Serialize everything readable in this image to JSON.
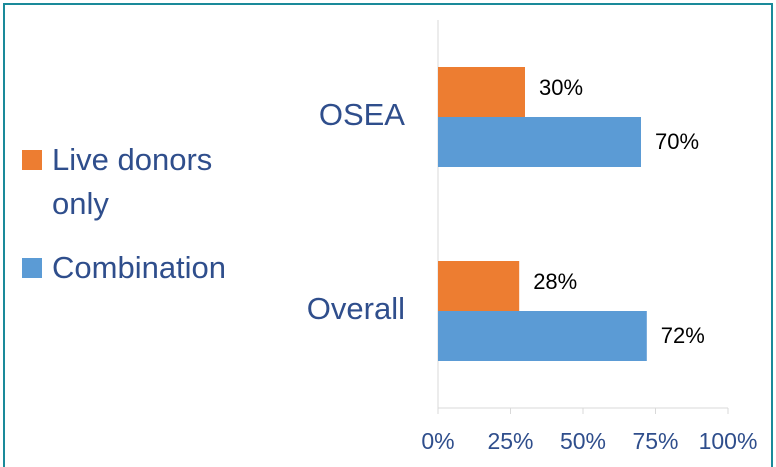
{
  "chart_data": {
    "type": "bar",
    "orientation": "horizontal",
    "categories": [
      "OSEA",
      "Overall"
    ],
    "series": [
      {
        "name": "Live donors only",
        "color": "#ed7d31",
        "values": [
          30,
          28
        ],
        "value_labels": [
          "30%",
          "28%"
        ]
      },
      {
        "name": "Combination",
        "color": "#5b9bd5",
        "values": [
          70,
          72
        ],
        "value_labels": [
          "70%",
          "72%"
        ]
      }
    ],
    "xlim": [
      0,
      100
    ],
    "xticks": [
      {
        "value": 0,
        "label": "0%"
      },
      {
        "value": 25,
        "label": "25%"
      },
      {
        "value": 50,
        "label": "50%"
      },
      {
        "value": 75,
        "label": "75%"
      },
      {
        "value": 100,
        "label": "100%"
      }
    ],
    "legend": "left"
  }
}
